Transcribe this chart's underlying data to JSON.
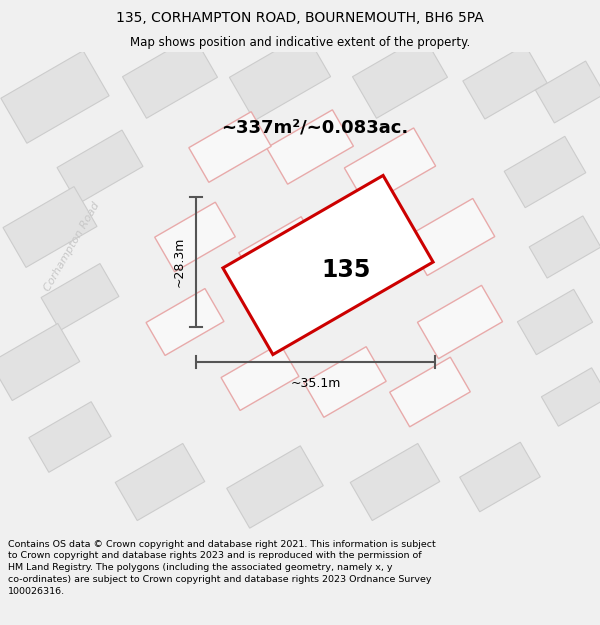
{
  "title_line1": "135, CORHAMPTON ROAD, BOURNEMOUTH, BH6 5PA",
  "title_line2": "Map shows position and indicative extent of the property.",
  "footer_text": "Contains OS data © Crown copyright and database right 2021. This information is subject to Crown copyright and database rights 2023 and is reproduced with the permission of HM Land Registry. The polygons (including the associated geometry, namely x, y co-ordinates) are subject to Crown copyright and database rights 2023 Ordnance Survey 100026316.",
  "area_label": "~337m²/~0.083ac.",
  "number_label": "135",
  "width_label": "~35.1m",
  "height_label": "~28.3m",
  "road_label": "Corhampton Road",
  "bg_color": "#f0f0f0",
  "map_bg": "#f5f5f5",
  "building_fill": "#e2e2e2",
  "building_edge": "#cccccc",
  "red_edge": "#e8aaaa",
  "highlight_stroke": "#cc0000",
  "dimension_color": "#555555",
  "road_label_color": "#c8c8c8",
  "title_fontsize": 10,
  "subtitle_fontsize": 8.5,
  "footer_fontsize": 6.8,
  "area_fontsize": 13,
  "number_fontsize": 17,
  "dim_fontsize": 9,
  "road_fontsize": 8
}
